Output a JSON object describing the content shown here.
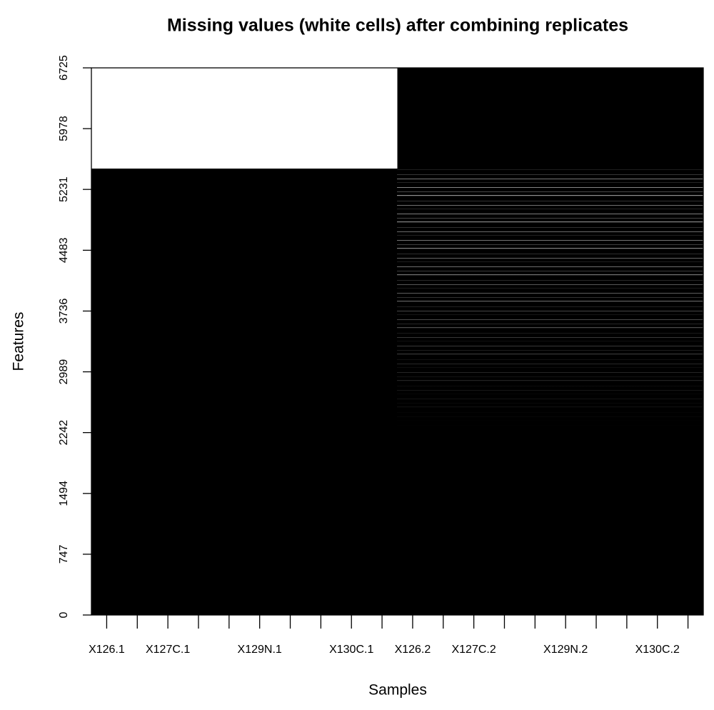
{
  "chart_data": {
    "type": "heatmap",
    "title": "Missing values (white cells) after combining replicates",
    "x_label": "Samples",
    "y_label": "Features",
    "categories": [
      "X126.1",
      null,
      "X127C.1",
      null,
      null,
      "X129N.1",
      null,
      null,
      "X130C.1",
      null,
      "X126.2",
      null,
      "X127C.2",
      null,
      null,
      "X129N.2",
      null,
      null,
      "X130C.2",
      null
    ],
    "ylim": [
      0,
      6725
    ],
    "yticks": [
      0,
      747,
      1494,
      2242,
      2989,
      3736,
      4483,
      5231,
      5978,
      6725
    ],
    "missing_regions": [
      {
        "columns": [
          0,
          9
        ],
        "features": [
          5487,
          6725
        ]
      }
    ],
    "observed_color": "#000000",
    "missing_color": "#ffffff"
  }
}
